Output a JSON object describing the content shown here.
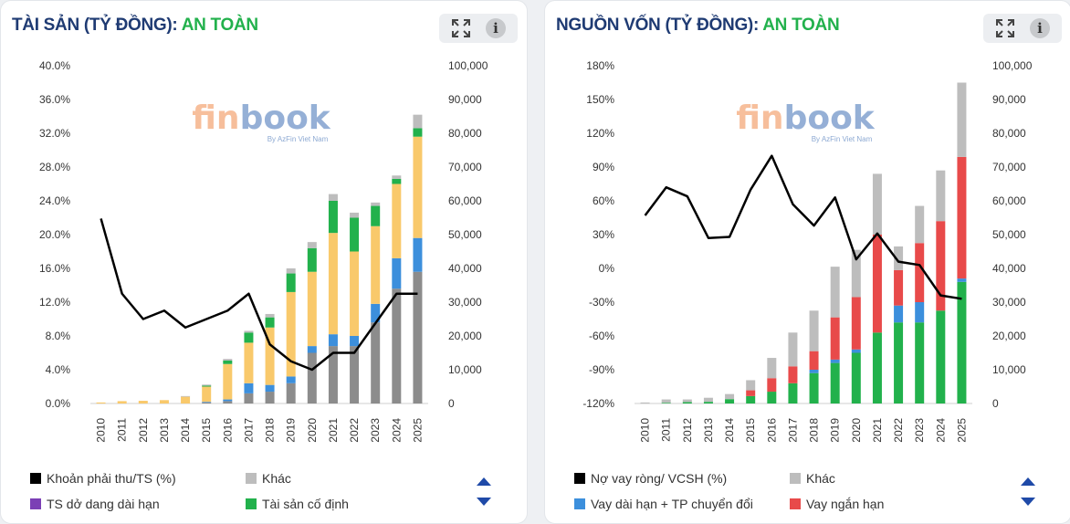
{
  "brand": {
    "logo_main_fin": "fin",
    "logo_main_book": "book",
    "logo_sub": "By AzFin Viet Nam"
  },
  "panels": [
    {
      "id": "left",
      "title": "TÀI SẢN (TỶ ĐỒNG): ",
      "status": "AN TOÀN",
      "legend": [
        {
          "label": "Khoản phải thu/TS (%)",
          "color": "#000000"
        },
        {
          "label": "Khác",
          "color": "#bdbdbd"
        },
        {
          "label": "TS dở dang dài hạn",
          "color": "#7b3fb5"
        },
        {
          "label": "Tài sản cố định",
          "color": "#22b14c"
        }
      ]
    },
    {
      "id": "right",
      "title": "NGUỒN VỐN (TỶ ĐỒNG): ",
      "status": "AN TOÀN",
      "legend": [
        {
          "label": "Nợ vay ròng/ VCSH (%)",
          "color": "#000000"
        },
        {
          "label": "Khác",
          "color": "#bdbdbd"
        },
        {
          "label": "Vay dài hạn + TP chuyển đổi",
          "color": "#3c8fdc"
        },
        {
          "label": "Vay ngắn hạn",
          "color": "#e84a4a"
        }
      ]
    }
  ],
  "chart_data": [
    {
      "type": "bar",
      "stacked": true,
      "categories": [
        "2010",
        "2011",
        "2012",
        "2013",
        "2014",
        "2015",
        "2016",
        "2017",
        "2018",
        "2019",
        "2020",
        "2021",
        "2022",
        "2023",
        "2024",
        "2025"
      ],
      "y_left": {
        "ticks": [
          "0.0%",
          "4.0%",
          "8.0%",
          "12.0%",
          "16.0%",
          "20.0%",
          "24.0%",
          "28.0%",
          "32.0%",
          "36.0%",
          "40.0%"
        ],
        "ylim": [
          0,
          40
        ]
      },
      "y_right": {
        "ticks": [
          "0",
          "10,000",
          "20,000",
          "30,000",
          "40,000",
          "50,000",
          "60,000",
          "70,000",
          "80,000",
          "90,000",
          "100,000"
        ],
        "ylim": [
          0,
          100000
        ]
      },
      "series": [
        {
          "key": "grey_base",
          "color": "#8c8c8c",
          "values": [
            0,
            0,
            0,
            0,
            0,
            300,
            700,
            3000,
            3500,
            6000,
            15000,
            17000,
            17000,
            24000,
            34000,
            39000
          ]
        },
        {
          "key": "tscd",
          "color": "#22b14c",
          "values": [
            0,
            0,
            0,
            0,
            0,
            0,
            0,
            0,
            0,
            0,
            0,
            0,
            0,
            0,
            0,
            0
          ]
        },
        {
          "key": "blue",
          "color": "#3c8fdc",
          "values": [
            0,
            0,
            0,
            0,
            0,
            200,
            500,
            3000,
            2000,
            2000,
            2000,
            3500,
            3000,
            5500,
            9000,
            10000
          ]
        },
        {
          "key": "yellow",
          "color": "#f9c96b",
          "values": [
            300,
            700,
            800,
            1000,
            2000,
            4500,
            10500,
            12000,
            17000,
            25000,
            22000,
            30000,
            25000,
            23000,
            22000,
            30000
          ]
        },
        {
          "key": "green",
          "color": "#22b14c",
          "values": [
            0,
            0,
            0,
            0,
            0,
            300,
            1000,
            3000,
            3000,
            5500,
            7000,
            9500,
            10000,
            6000,
            1500,
            2500
          ]
        },
        {
          "key": "khac",
          "color": "#bdbdbd",
          "values": [
            0,
            0,
            0,
            0,
            200,
            300,
            500,
            500,
            1000,
            1500,
            1800,
            2000,
            1500,
            1000,
            1000,
            4000
          ]
        }
      ],
      "line": {
        "name": "Khoản phải thu/TS (%)",
        "color": "#000000",
        "axis": "left",
        "values": [
          21.9,
          13.0,
          10.0,
          11.0,
          9.0,
          10.0,
          11.0,
          13.0,
          7.0,
          5.0,
          4.0,
          6.0,
          6.0,
          9.5,
          13.0,
          13.0
        ]
      }
    },
    {
      "type": "bar",
      "stacked": true,
      "categories": [
        "2010",
        "2011",
        "2012",
        "2013",
        "2014",
        "2015",
        "2016",
        "2017",
        "2018",
        "2019",
        "2020",
        "2021",
        "2022",
        "2023",
        "2024",
        "2025"
      ],
      "y_left": {
        "ticks": [
          "-120%",
          "-90%",
          "-60%",
          "-30%",
          "0%",
          "30%",
          "60%",
          "90%",
          "120%",
          "150%",
          "180%"
        ],
        "ylim": [
          -120,
          180
        ]
      },
      "y_right": {
        "ticks": [
          "0",
          "10,000",
          "20,000",
          "30,000",
          "40,000",
          "50,000",
          "60,000",
          "70,000",
          "80,000",
          "90,000",
          "100,000"
        ],
        "ylim": [
          0,
          100000
        ]
      },
      "series": [
        {
          "key": "green",
          "color": "#22b14c",
          "values": [
            0,
            200,
            400,
            500,
            1300,
            2200,
            3500,
            6000,
            9000,
            12000,
            15000,
            21000,
            24000,
            24000,
            27500,
            36000
          ]
        },
        {
          "key": "blue",
          "color": "#3c8fdc",
          "values": [
            0,
            0,
            0,
            0,
            0,
            0,
            0,
            0,
            1000,
            1000,
            1000,
            0,
            5000,
            6000,
            0,
            1000
          ]
        },
        {
          "key": "red",
          "color": "#e84a4a",
          "values": [
            0,
            0,
            0,
            0,
            0,
            1700,
            4000,
            5000,
            5500,
            12500,
            15500,
            29000,
            10500,
            17500,
            26500,
            36000
          ]
        },
        {
          "key": "khac",
          "color": "#bdbdbd",
          "values": [
            300,
            1000,
            800,
            1200,
            1500,
            3000,
            6000,
            10000,
            12000,
            15000,
            14000,
            18000,
            7000,
            11000,
            15000,
            22000
          ]
        }
      ],
      "line": {
        "name": "Nợ vay ròng/ VCSH (%)",
        "color": "#000000",
        "axis": "left",
        "values": [
          47,
          72,
          64,
          27,
          28,
          70,
          100,
          57,
          38,
          63,
          8,
          31,
          6,
          3,
          -24,
          -27
        ]
      }
    }
  ]
}
